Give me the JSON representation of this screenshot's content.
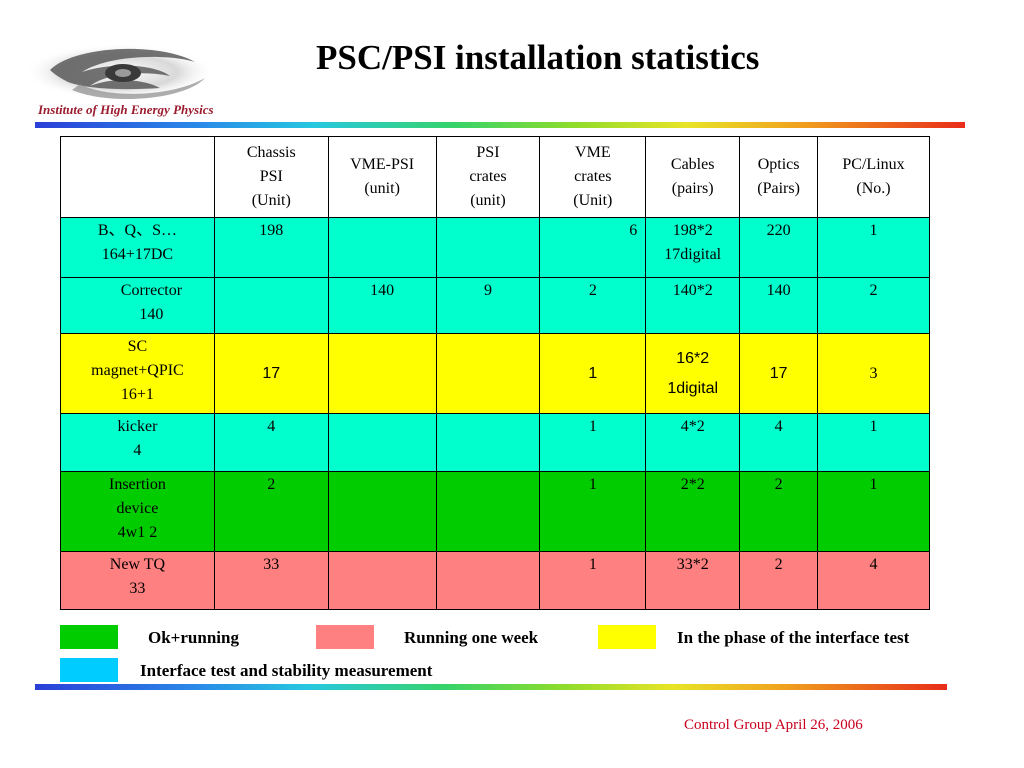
{
  "slide": {
    "title": "PSC/PSI installation statistics",
    "logo_text": "Institute of High Energy Physics",
    "footer": "Control Group April 26, 2006"
  },
  "colors": {
    "ok_running": "#00cc00",
    "running_one_week": "#ff8080",
    "interface_phase": "#ffff00",
    "interface_test": "#00ffcc",
    "legend_interface_swatch": "#00ccff",
    "footer_text": "#c8001e"
  },
  "table": {
    "headers": [
      [],
      [
        "Chassis",
        "PSI",
        "(Unit)"
      ],
      [
        "VME-PSI",
        "(unit)"
      ],
      [
        "PSI",
        "crates",
        "(unit)"
      ],
      [
        "VME",
        "crates",
        "(Unit)"
      ],
      [
        "Cables",
        "(pairs)"
      ],
      [
        "Optics",
        "(Pairs)"
      ],
      [
        "PC/Linux",
        "(No.)"
      ]
    ],
    "rows": [
      {
        "status": "interface_test",
        "label": [
          "B、Q、S…",
          "164+17DC"
        ],
        "cells": [
          [
            "198"
          ],
          [],
          [],
          [
            "6"
          ],
          [
            "198*2",
            "17digital"
          ],
          [
            "220"
          ],
          [
            "1"
          ]
        ]
      },
      {
        "status": "interface_test",
        "label": [
          "Corrector",
          "140"
        ],
        "cells": [
          [],
          [
            "140"
          ],
          [
            "9"
          ],
          [
            "2"
          ],
          [
            "140*2"
          ],
          [
            "140"
          ],
          [
            "2"
          ]
        ]
      },
      {
        "status": "interface_phase",
        "label": [
          "SC",
          "magnet+QPIC",
          "16+1"
        ],
        "cells": [
          [
            "17"
          ],
          [],
          [],
          [
            "1"
          ],
          [
            "16*2",
            "1digital"
          ],
          [
            "17"
          ],
          [
            "3"
          ]
        ]
      },
      {
        "status": "interface_test",
        "label": [
          "kicker",
          "4"
        ],
        "cells": [
          [
            "4"
          ],
          [],
          [],
          [
            "1"
          ],
          [
            "4*2"
          ],
          [
            "4"
          ],
          [
            "1"
          ]
        ]
      },
      {
        "status": "ok_running",
        "label": [
          "Insertion",
          "device",
          "4w1  2"
        ],
        "cells": [
          [
            "2"
          ],
          [],
          [],
          [
            "1"
          ],
          [
            "2*2"
          ],
          [
            "2"
          ],
          [
            "1"
          ]
        ]
      },
      {
        "status": "running_one_week",
        "label": [
          "New TQ",
          "33"
        ],
        "cells": [
          [
            "33"
          ],
          [],
          [],
          [
            "1"
          ],
          [
            "33*2"
          ],
          [
            "2"
          ],
          [
            "4"
          ]
        ]
      }
    ]
  },
  "legend": [
    {
      "key": "ok_running",
      "label": "Ok+running"
    },
    {
      "key": "running_one_week",
      "label": "Running one week"
    },
    {
      "key": "interface_phase",
      "label": "In the phase of the interface test"
    },
    {
      "key": "legend_interface_swatch",
      "label": "Interface test and  stability measurement"
    }
  ]
}
